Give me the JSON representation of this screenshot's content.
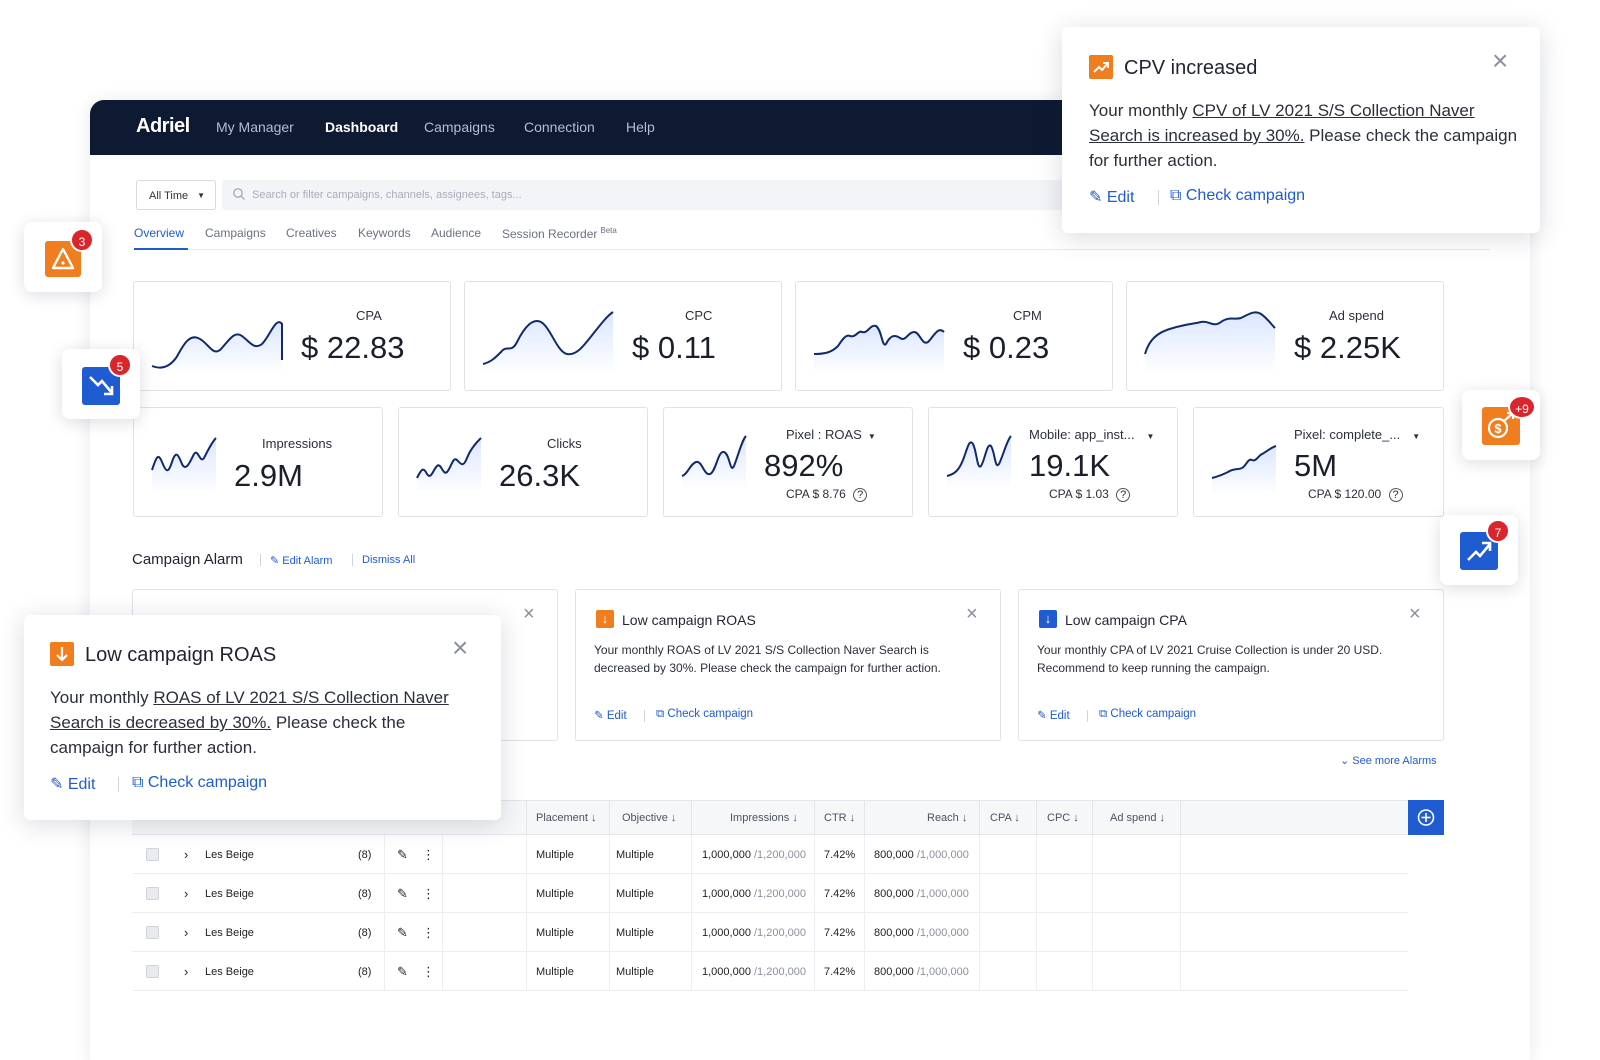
{
  "nav": {
    "logo": "Adriel",
    "items": [
      "My Manager",
      "Dashboard",
      "Campaigns",
      "Connection",
      "Help"
    ],
    "active": "Dashboard"
  },
  "filter": {
    "time_value": "All Time",
    "search_placeholder": "Search or filter campaigns, channels, assignees, tags..."
  },
  "tabs": [
    "Overview",
    "Campaigns",
    "Creatives",
    "Keywords",
    "Audience",
    "Session Recorder"
  ],
  "tabs_beta": "Beta",
  "metrics_top": [
    {
      "label": "CPA",
      "value": "$ 22.83"
    },
    {
      "label": "CPC",
      "value": "$ 0.11"
    },
    {
      "label": "CPM",
      "value": "$ 0.23"
    },
    {
      "label": "Ad spend",
      "value": "$ 2.25K"
    }
  ],
  "metrics_bottom": [
    {
      "label": "Impressions",
      "value": "2.9M"
    },
    {
      "label": "Clicks",
      "value": "26.3K"
    },
    {
      "label": "Pixel : ROAS",
      "value": "892%",
      "sub": "CPA  $ 8.76"
    },
    {
      "label": "Mobile: app_inst...",
      "value": "19.1K",
      "sub": "CPA  $ 1.03"
    },
    {
      "label": "Pixel: complete_...",
      "value": "5M",
      "sub": "CPA  $ 120.00"
    }
  ],
  "alarm": {
    "title": "Campaign Alarm",
    "edit_label": "Edit Alarm",
    "dismiss_label": "Dismiss All",
    "see_more": "See more Alarms",
    "cards": [
      {
        "title": "Low campaign ROAS",
        "body": "Your monthly ROAS of LV 2021 S/S Collection Naver Search is decreased by 30%. Please check the campaign for further action.",
        "edit": "Edit",
        "check": "Check campaign",
        "color": "#f07d1e"
      },
      {
        "title": "Low campaign CPA",
        "body": "Your monthly CPA of LV 2021 Cruise Collection is under 20 USD. Recommend to keep running the campaign.",
        "edit": "Edit",
        "check": "Check campaign",
        "color": "#1f5bd1"
      }
    ]
  },
  "table": {
    "headers": [
      "Placement",
      "Objective",
      "Impressions",
      "CTR",
      "Reach",
      "CPA",
      "CPC",
      "Ad spend"
    ],
    "rows": [
      {
        "name": "Les Beige",
        "count": "(8)",
        "placement": "Multiple",
        "objective": "Multiple",
        "impressions": "1,000,000",
        "impressions_total": "/1,200,000",
        "ctr": "7.42%",
        "reach": "800,000",
        "reach_total": "/1,000,000"
      },
      {
        "name": "Les Beige",
        "count": "(8)",
        "placement": "Multiple",
        "objective": "Multiple",
        "impressions": "1,000,000",
        "impressions_total": "/1,200,000",
        "ctr": "7.42%",
        "reach": "800,000",
        "reach_total": "/1,000,000"
      },
      {
        "name": "Les Beige",
        "count": "(8)",
        "placement": "Multiple",
        "objective": "Multiple",
        "impressions": "1,000,000",
        "impressions_total": "/1,200,000",
        "ctr": "7.42%",
        "reach": "800,000",
        "reach_total": "/1,000,000"
      },
      {
        "name": "Les Beige",
        "count": "(8)",
        "placement": "Multiple",
        "objective": "Multiple",
        "impressions": "1,000,000",
        "impressions_total": "/1,200,000",
        "ctr": "7.42%",
        "reach": "800,000",
        "reach_total": "/1,000,000"
      }
    ]
  },
  "popup_cpv": {
    "title": "CPV increased",
    "body_pre": "Your monthly ",
    "body_link": "CPV of LV 2021 S/S Collection Naver Search is increased by 30%.",
    "body_post": " Please check the campaign for further action.",
    "edit": "Edit",
    "check": "Check campaign",
    "color": "#f07d1e"
  },
  "popup_roas": {
    "title": "Low campaign ROAS",
    "body_pre": "Your monthly ",
    "body_link": "ROAS of LV 2021 S/S Collection Naver Search is decreased by 30%.",
    "body_post": " Please check the campaign for further action.",
    "edit": "Edit",
    "check": "Check campaign",
    "color": "#f07d1e"
  },
  "floating_badges": [
    {
      "icon": "alert-triangle-icon",
      "count": "3",
      "color": "#f07d1e"
    },
    {
      "icon": "trend-down-icon",
      "count": "5",
      "color": "#1f5bd1"
    },
    {
      "icon": "money-up-icon",
      "count": "+9",
      "color": "#f07d1e"
    },
    {
      "icon": "trend-up-icon",
      "count": "7",
      "color": "#1f5bd1"
    }
  ],
  "colors": {
    "navy": "#0e1a32",
    "accent_blue": "#1f5bd1",
    "alert_orange": "#f07d1e",
    "badge_red": "#d9262c"
  }
}
